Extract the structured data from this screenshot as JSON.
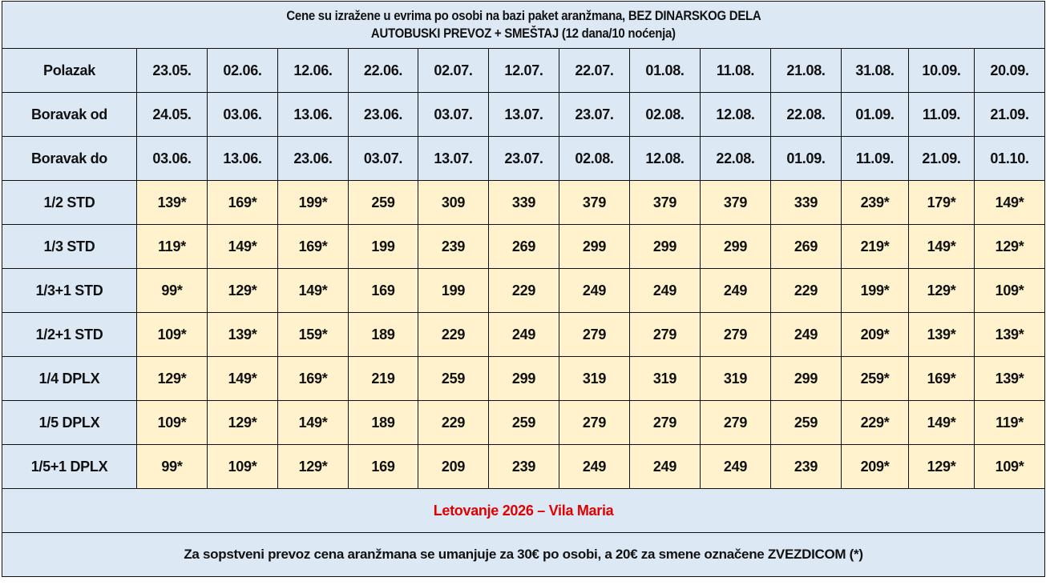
{
  "header": {
    "line1": "Cene su izražene u evrima po osobi na bazi paket aranžmana, BEZ DINARSKOG DELA",
    "line2": "AUTOBUSKI PREVOZ + SMEŠTAJ (12 dana/10 noćenja)"
  },
  "date_rows": [
    {
      "label": "Polazak",
      "values": [
        "23.05.",
        "02.06.",
        "12.06.",
        "22.06.",
        "02.07.",
        "12.07.",
        "22.07.",
        "01.08.",
        "11.08.",
        "21.08.",
        "31.08.",
        "10.09.",
        "20.09."
      ]
    },
    {
      "label": "Boravak od",
      "values": [
        "24.05.",
        "03.06.",
        "13.06.",
        "23.06.",
        "03.07.",
        "13.07.",
        "23.07.",
        "02.08.",
        "12.08.",
        "22.08.",
        "01.09.",
        "11.09.",
        "21.09."
      ]
    },
    {
      "label": "Boravak do",
      "values": [
        "03.06.",
        "13.06.",
        "23.06.",
        "03.07.",
        "13.07.",
        "23.07.",
        "02.08.",
        "12.08.",
        "22.08.",
        "01.09.",
        "11.09.",
        "21.09.",
        "01.10."
      ]
    }
  ],
  "price_rows": [
    {
      "label": "1/2 STD",
      "values": [
        "139*",
        "169*",
        "199*",
        "259",
        "309",
        "339",
        "379",
        "379",
        "379",
        "339",
        "239*",
        "179*",
        "149*"
      ]
    },
    {
      "label": "1/3 STD",
      "values": [
        "119*",
        "149*",
        "169*",
        "199",
        "239",
        "269",
        "299",
        "299",
        "299",
        "269",
        "219*",
        "149*",
        "129*"
      ]
    },
    {
      "label": "1/3+1 STD",
      "values": [
        "99*",
        "129*",
        "149*",
        "169",
        "199",
        "229",
        "249",
        "249",
        "249",
        "229",
        "199*",
        "129*",
        "109*"
      ]
    },
    {
      "label": "1/2+1 STD",
      "values": [
        "109*",
        "139*",
        "159*",
        "189",
        "229",
        "249",
        "279",
        "279",
        "279",
        "249",
        "209*",
        "139*",
        "139*"
      ]
    },
    {
      "label": "1/4 DPLX",
      "values": [
        "129*",
        "149*",
        "169*",
        "219",
        "259",
        "299",
        "319",
        "319",
        "319",
        "299",
        "259*",
        "169*",
        "139*"
      ]
    },
    {
      "label": "1/5 DPLX",
      "values": [
        "109*",
        "129*",
        "149*",
        "189",
        "229",
        "259",
        "279",
        "279",
        "279",
        "259",
        "229*",
        "149*",
        "119*"
      ]
    },
    {
      "label": "1/5+1 DPLX",
      "values": [
        "99*",
        "109*",
        "129*",
        "169",
        "209",
        "239",
        "249",
        "249",
        "249",
        "239",
        "209*",
        "129*",
        "109*"
      ]
    }
  ],
  "footer": {
    "title": "Letovanje 2026 – Vila Maria",
    "note": "Za sopstveni prevoz cena aranžmana se umanjuje za 30€ po osobi, a 20€ za smene označene ZVEZDICOM (*)"
  },
  "colors": {
    "header_bg": "#dde8f5",
    "price_bg": "#fff2cc",
    "title": "#e00000"
  }
}
